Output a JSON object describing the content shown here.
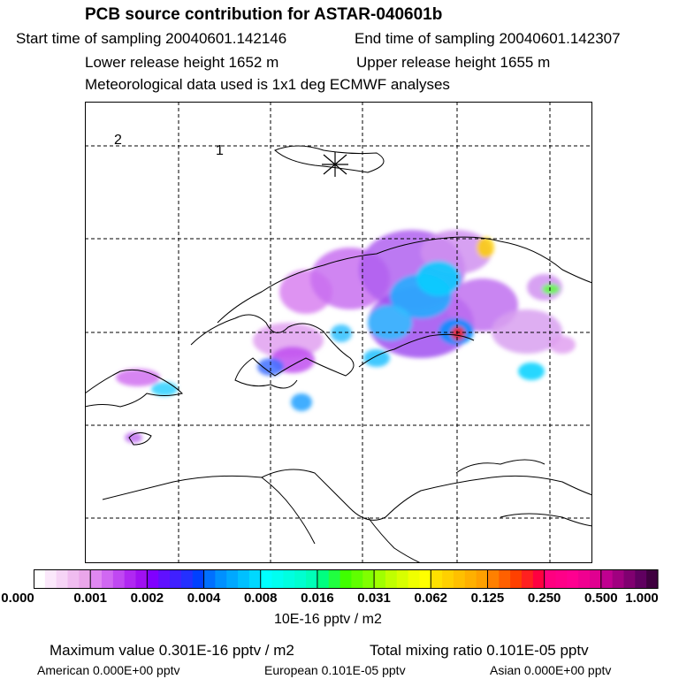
{
  "header": {
    "title": "PCB source contribution for ASTAR-040601b",
    "start_time": "Start time of sampling 20040601.142146",
    "end_time": "End time of sampling 20040601.142307",
    "lower_height": "Lower release height 1652 m",
    "upper_height": "Upper release height 1655 m",
    "met_data": "Meteorological data used is 1x1 deg ECMWF analyses"
  },
  "chart_data": {
    "type": "heatmap",
    "title": "PCB source contribution for ASTAR-040601b",
    "map_labels": [
      "2",
      "1"
    ],
    "colorbar": {
      "ticks": [
        "0.000",
        "0.001",
        "0.002",
        "0.004",
        "0.008",
        "0.016",
        "0.031",
        "0.062",
        "0.125",
        "0.250",
        "0.500",
        "1.000"
      ],
      "unit": "10E-16 pptv / m2",
      "colors": [
        "#ffffff",
        "#fbe8fb",
        "#f6d4f6",
        "#f0bcf0",
        "#eaa6ea",
        "#e088f2",
        "#d068f2",
        "#c048f2",
        "#b028f2",
        "#a010f2",
        "#8000ff",
        "#6010ff",
        "#4020ff",
        "#2430ff",
        "#0040ff",
        "#0070ff",
        "#0090ff",
        "#00a8ff",
        "#00c0ff",
        "#00d8ff",
        "#00ffff",
        "#00fff0",
        "#00ffe0",
        "#00ffd0",
        "#00ffb8",
        "#00ff80",
        "#20ff40",
        "#40ff00",
        "#60ff00",
        "#80ff00",
        "#a0ff00",
        "#c0ff00",
        "#d8ff00",
        "#f0ff00",
        "#ffff00",
        "#ffe000",
        "#ffd000",
        "#ffc000",
        "#ffb000",
        "#ffa000",
        "#ff8000",
        "#ff6000",
        "#ff4000",
        "#ff2020",
        "#ff0040",
        "#ff0080",
        "#ff0088",
        "#ff0090",
        "#f00090",
        "#e00090",
        "#c00090",
        "#a00080",
        "#800070",
        "#600060",
        "#400040"
      ]
    }
  },
  "footer": {
    "max_value": "Maximum value  0.301E-16 pptv / m2",
    "total": "Total mixing ratio  0.101E-05 pptv",
    "american": "American  0.000E+00 pptv",
    "european": "European  0.101E-05 pptv",
    "asian": "Asian  0.000E+00 pptv"
  }
}
